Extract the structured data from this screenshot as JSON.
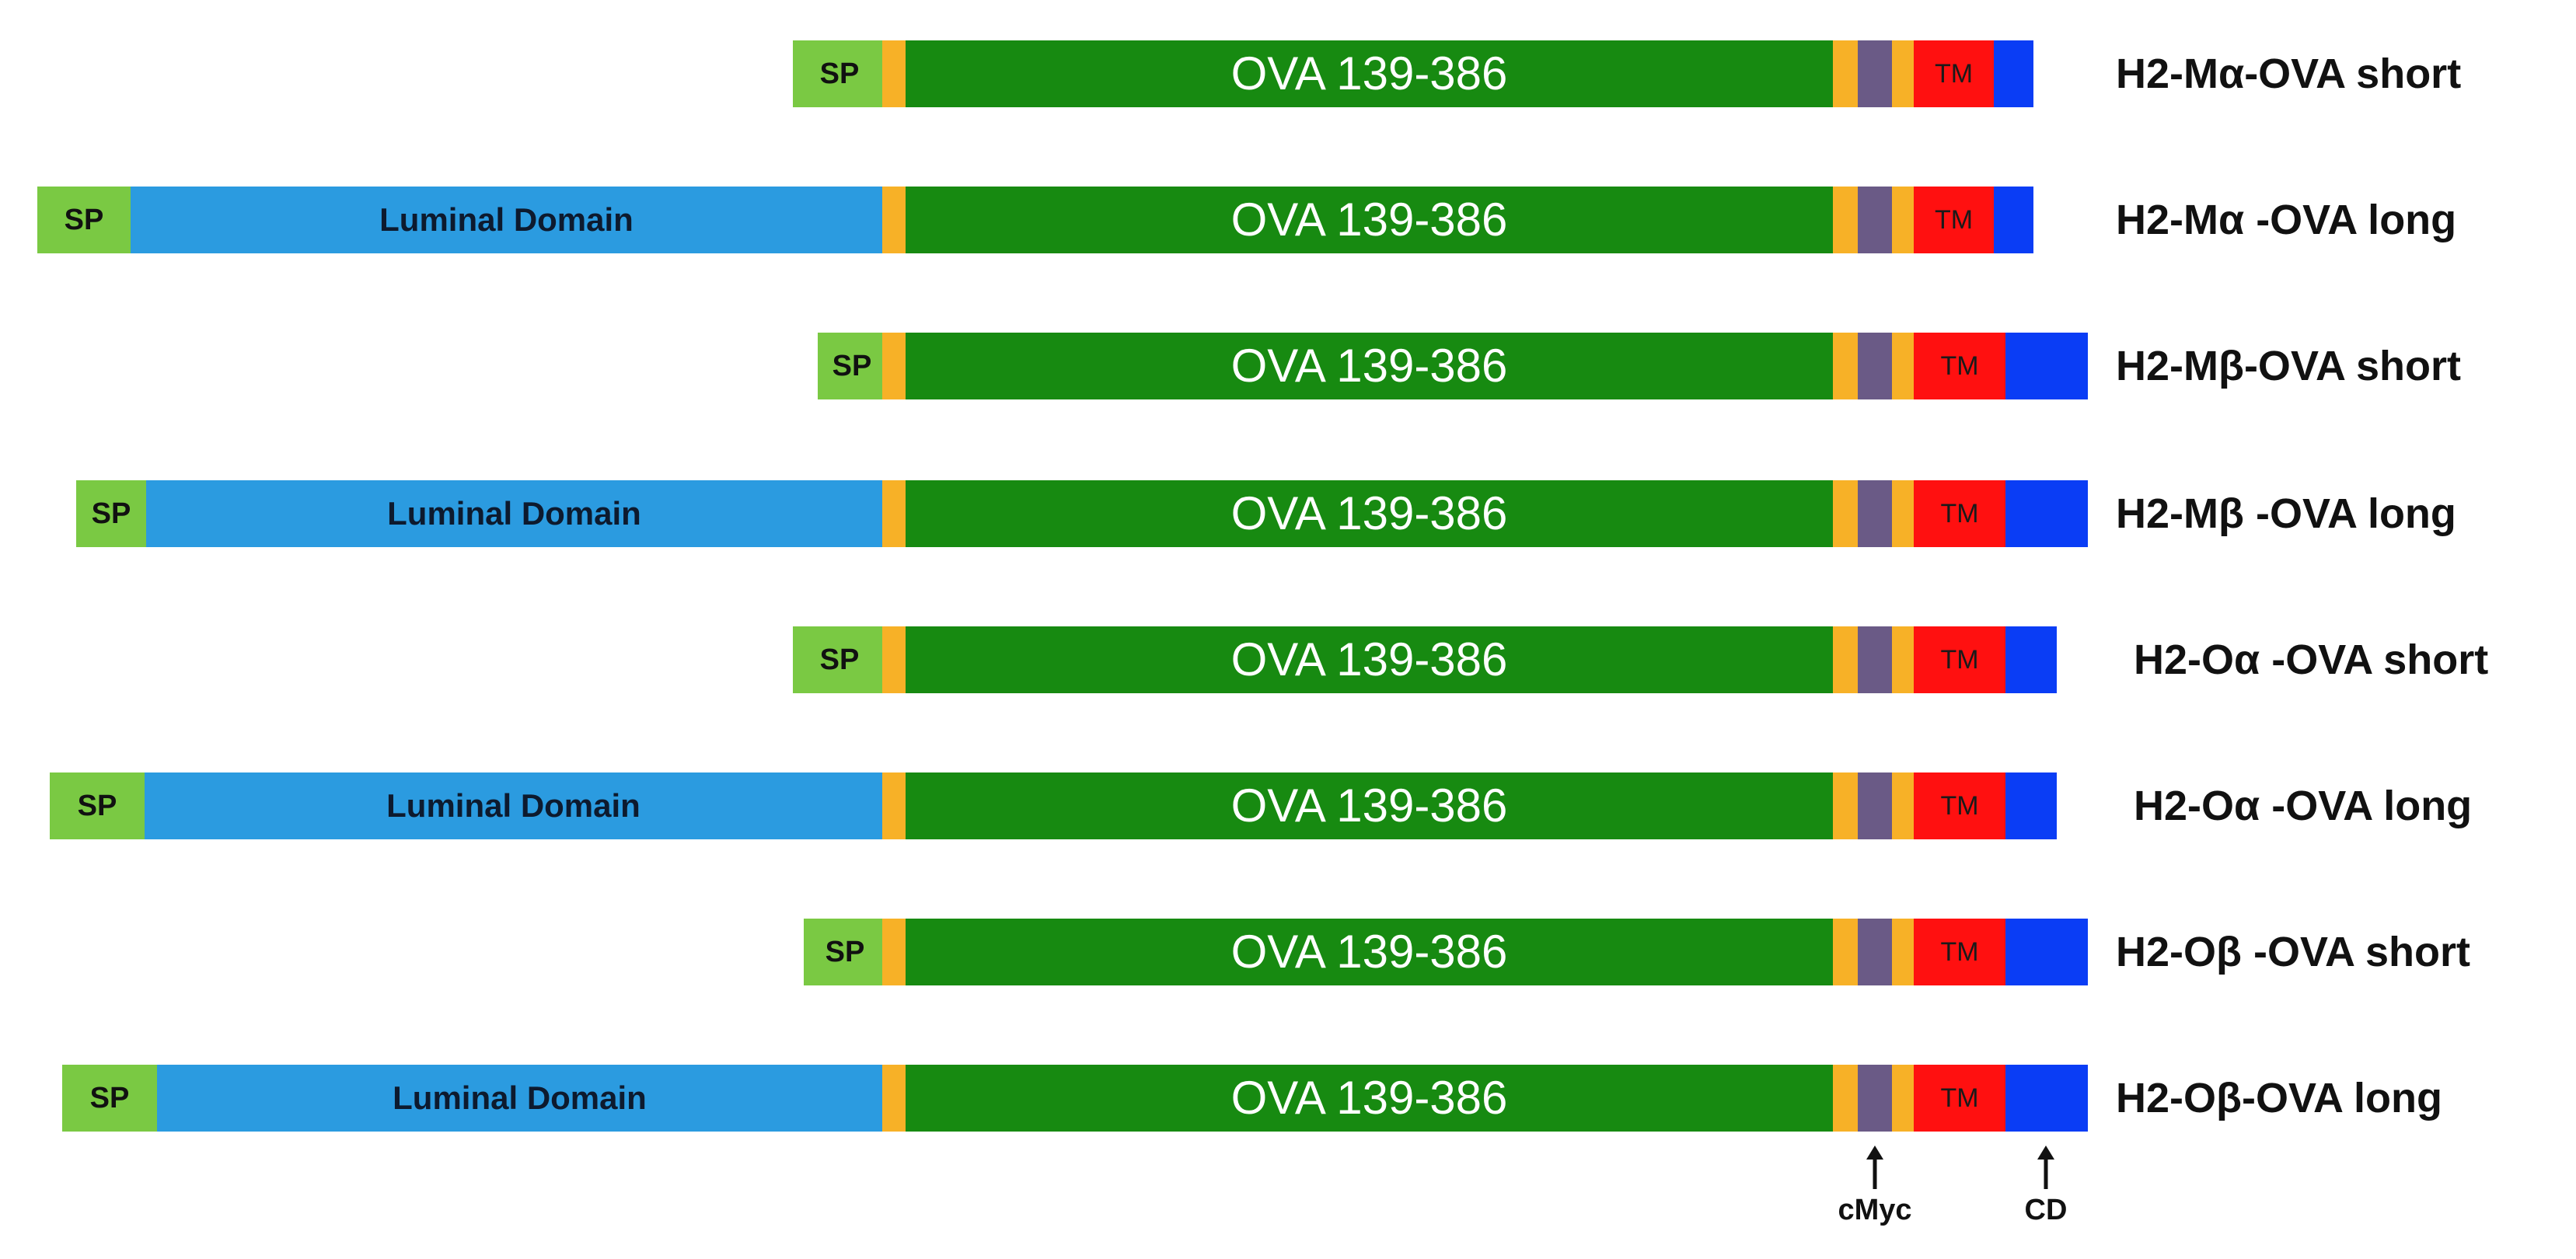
{
  "colors": {
    "sp": "#7ac943",
    "luminal": "#2b9be0",
    "linker": "#f7b127",
    "ova": "#178a11",
    "cmyc": "#6a5a86",
    "tm": "#ff1010",
    "cd": "#0a3df5"
  },
  "labels": {
    "sp": "SP",
    "luminal": "Luminal Domain",
    "ova": "OVA 139-386",
    "tm": "TM"
  },
  "constructs": [
    {
      "name": "H2-Mα-OVA short",
      "form": "short",
      "cd_size": "short"
    },
    {
      "name": "H2-Mα -OVA long",
      "form": "long",
      "cd_size": "short"
    },
    {
      "name": "H2-Mβ-OVA short",
      "form": "short",
      "cd_size": "long"
    },
    {
      "name": "H2-Mβ -OVA long",
      "form": "long",
      "cd_size": "long"
    },
    {
      "name": "H2-Oα -OVA short",
      "form": "short",
      "cd_size": "medium"
    },
    {
      "name": "H2-Oα -OVA long",
      "form": "long",
      "cd_size": "medium"
    },
    {
      "name": "H2-Oβ -OVA short",
      "form": "short",
      "cd_size": "long"
    },
    {
      "name": "H2-Oβ-OVA long",
      "form": "long",
      "cd_size": "long"
    }
  ],
  "markers": {
    "cmyc": "cMyc",
    "cd": "CD"
  }
}
